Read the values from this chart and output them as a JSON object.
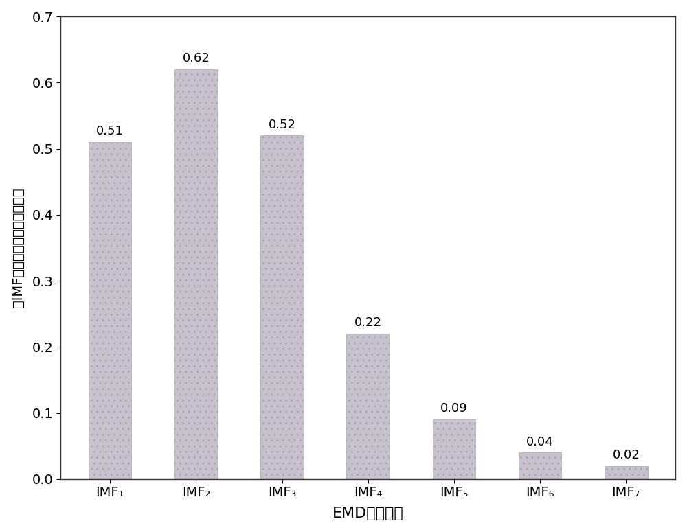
{
  "categories": [
    "IMF₁",
    "IMF₂",
    "IMF₃",
    "IMF₄",
    "IMF₅",
    "IMF₆",
    "IMF₇"
  ],
  "values": [
    0.51,
    0.62,
    0.52,
    0.22,
    0.09,
    0.04,
    0.02
  ],
  "bar_color": "#C8C0CC",
  "bar_edge_color": "#aaaaaa",
  "bar_edge_width": 0.5,
  "xlabel": "EMD分解阶次",
  "ylabel": "各IMF与归一化信号的相关系数",
  "ylim": [
    0.0,
    0.7
  ],
  "yticks": [
    0.0,
    0.1,
    0.2,
    0.3,
    0.4,
    0.5,
    0.6,
    0.7
  ],
  "xlabel_fontsize": 16,
  "ylabel_fontsize": 14,
  "tick_fontsize": 14,
  "label_fontsize": 13,
  "background_color": "#ffffff",
  "plot_bg_color": "#ffffff",
  "bar_width": 0.5,
  "hatch": ".."
}
